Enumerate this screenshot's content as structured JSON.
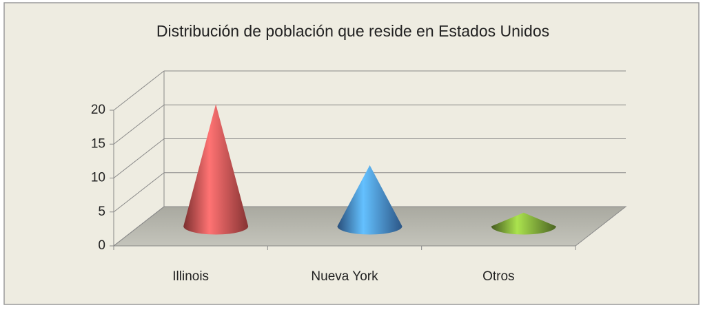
{
  "chart_data": {
    "type": "cone3d",
    "title": "Distribución de población que reside en Estados Unidos",
    "categories": [
      "Illinois",
      "Nueva York",
      "Otros"
    ],
    "values": [
      18,
      9,
      2
    ],
    "colors": [
      "#e05555",
      "#4a8fe0",
      "#7fa83a"
    ],
    "ylim": [
      0,
      20
    ],
    "yticks": [
      0,
      5,
      10,
      15,
      20
    ],
    "grid": true
  }
}
